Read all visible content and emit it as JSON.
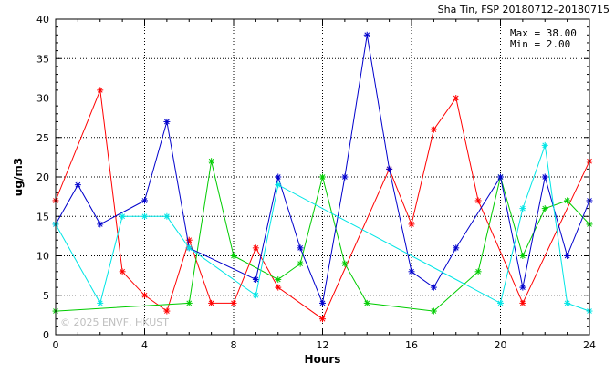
{
  "chart_data": {
    "type": "line",
    "title": "Sha Tin, FSP 20180712–20180715",
    "xlabel": "Hours",
    "ylabel": "ug/m3",
    "xlim": [
      0,
      24
    ],
    "ylim": [
      0,
      40
    ],
    "xticks": [
      0,
      4,
      8,
      12,
      16,
      20,
      24
    ],
    "yticks": [
      0,
      5,
      10,
      15,
      20,
      25,
      30,
      35,
      40
    ],
    "grid": true,
    "stats": {
      "max_label": "Max = 38.00",
      "min_label": "Min =  2.00"
    },
    "watermark": "© 2025 ENVF, HKUST",
    "series": [
      {
        "color": "#ff0000",
        "points": [
          [
            0,
            17
          ],
          [
            2,
            31
          ],
          [
            3,
            8
          ],
          [
            4,
            5
          ],
          [
            5,
            3
          ],
          [
            6,
            12
          ],
          [
            7,
            4
          ],
          [
            8,
            4
          ],
          [
            9,
            11
          ],
          [
            10,
            6
          ],
          [
            12,
            2
          ],
          [
            15,
            21
          ],
          [
            16,
            14
          ],
          [
            17,
            26
          ],
          [
            18,
            30
          ],
          [
            19,
            17
          ],
          [
            21,
            4
          ],
          [
            24,
            22
          ]
        ]
      },
      {
        "color": "#00cc00",
        "points": [
          [
            0,
            3
          ],
          [
            6,
            4
          ],
          [
            7,
            22
          ],
          [
            8,
            10
          ],
          [
            10,
            7
          ],
          [
            11,
            9
          ],
          [
            12,
            20
          ],
          [
            13,
            9
          ],
          [
            14,
            4
          ],
          [
            17,
            3
          ],
          [
            19,
            8
          ],
          [
            20,
            20
          ],
          [
            21,
            10
          ],
          [
            22,
            16
          ],
          [
            23,
            17
          ],
          [
            24,
            14
          ]
        ]
      },
      {
        "color": "#0000cc",
        "points": [
          [
            0,
            14
          ],
          [
            1,
            19
          ],
          [
            2,
            14
          ],
          [
            4,
            17
          ],
          [
            5,
            27
          ],
          [
            6,
            11
          ],
          [
            9,
            7
          ],
          [
            10,
            20
          ],
          [
            11,
            11
          ],
          [
            12,
            4
          ],
          [
            13,
            20
          ],
          [
            14,
            38
          ],
          [
            15,
            21
          ],
          [
            16,
            8
          ],
          [
            17,
            6
          ],
          [
            18,
            11
          ],
          [
            20,
            20
          ],
          [
            21,
            6
          ],
          [
            22,
            20
          ],
          [
            23,
            10
          ],
          [
            24,
            17
          ]
        ]
      },
      {
        "color": "#00e5e5",
        "points": [
          [
            0,
            14
          ],
          [
            2,
            4
          ],
          [
            3,
            15
          ],
          [
            4,
            15
          ],
          [
            5,
            15
          ],
          [
            6,
            11
          ],
          [
            9,
            5
          ],
          [
            10,
            19
          ],
          [
            20,
            4
          ],
          [
            21,
            16
          ],
          [
            22,
            24
          ],
          [
            23,
            4
          ],
          [
            24,
            3
          ]
        ]
      }
    ]
  }
}
